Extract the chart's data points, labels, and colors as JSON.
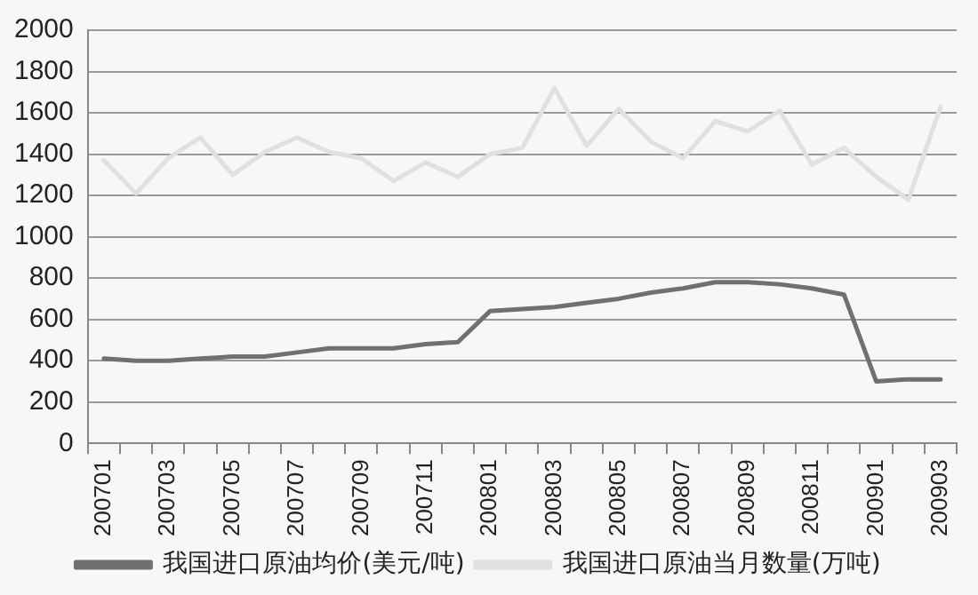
{
  "chart_data": {
    "type": "line",
    "categories": [
      "200701",
      null,
      "200703",
      null,
      "200705",
      null,
      "200707",
      null,
      "200709",
      null,
      "200711",
      null,
      "200801",
      null,
      "200803",
      null,
      "200805",
      null,
      "200807",
      null,
      "200809",
      null,
      "200811",
      null,
      "200901",
      null,
      "200903"
    ],
    "series": [
      {
        "name": "我国进口原油均价(美元/吨)",
        "color": "#707070",
        "values": [
          410,
          400,
          400,
          410,
          420,
          420,
          440,
          460,
          460,
          460,
          480,
          490,
          640,
          650,
          660,
          680,
          700,
          730,
          750,
          780,
          780,
          770,
          750,
          720,
          300,
          310,
          310
        ]
      },
      {
        "name": "我国进口原油当月数量(万吨)",
        "color": "#e0e0e0",
        "values": [
          1370,
          1210,
          1380,
          1480,
          1300,
          1410,
          1480,
          1410,
          1380,
          1270,
          1360,
          1290,
          1400,
          1430,
          1720,
          1440,
          1620,
          1460,
          1380,
          1560,
          1510,
          1610,
          1350,
          1430,
          1290,
          1180,
          1630
        ]
      }
    ],
    "ylim": [
      0,
      2000
    ],
    "yticks": [
      0,
      200,
      400,
      600,
      800,
      1000,
      1200,
      1400,
      1600,
      1800,
      2000
    ],
    "grid": "y",
    "legend": "bottom",
    "marker": "none",
    "line_style": "solid"
  }
}
